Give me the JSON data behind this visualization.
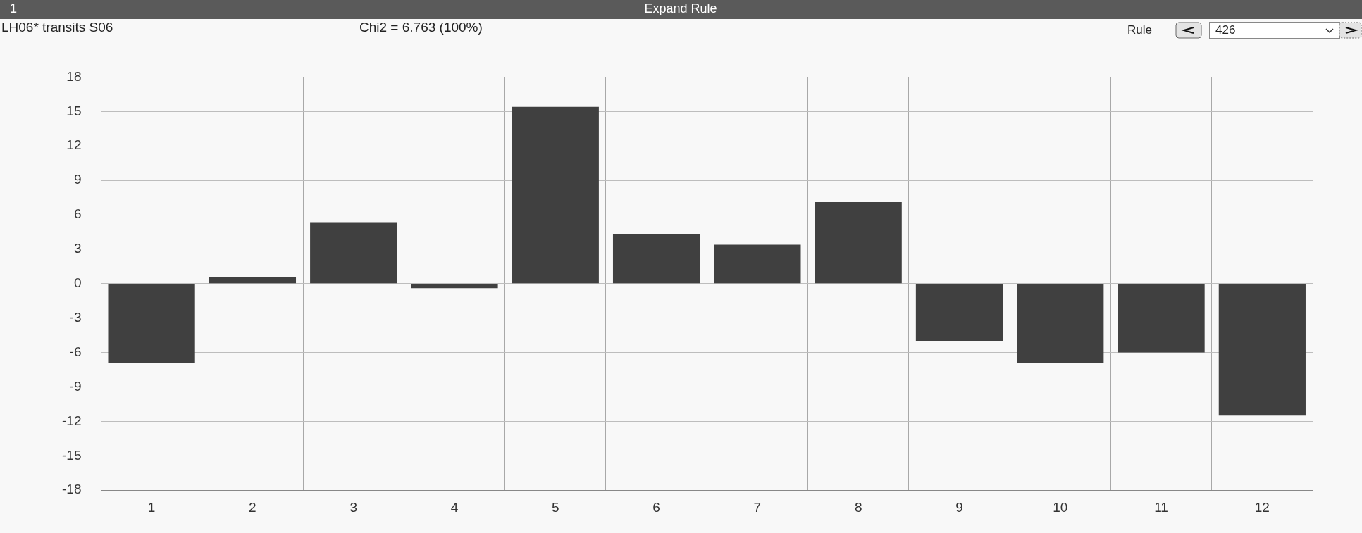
{
  "chart_data": {
    "type": "bar",
    "title": "Expand Rule",
    "subtitle": "LH06* transits S06",
    "annotations": [
      "1",
      "Chi2 = 6.763 (100%)",
      "Rule",
      "426"
    ],
    "categories": [
      "1",
      "2",
      "3",
      "4",
      "5",
      "6",
      "7",
      "8",
      "9",
      "10",
      "11",
      "12"
    ],
    "values": [
      -6.9,
      0.6,
      5.3,
      -0.4,
      15.4,
      4.3,
      3.4,
      7.1,
      -5.0,
      -6.9,
      -6.0,
      -11.5
    ],
    "color": "#404040",
    "ylim": [
      -18,
      18
    ],
    "yticks": [
      -18,
      -15,
      -12,
      -9,
      -6,
      -3,
      0,
      3,
      6,
      9,
      12,
      15,
      18
    ],
    "grid": true,
    "legend": false
  }
}
